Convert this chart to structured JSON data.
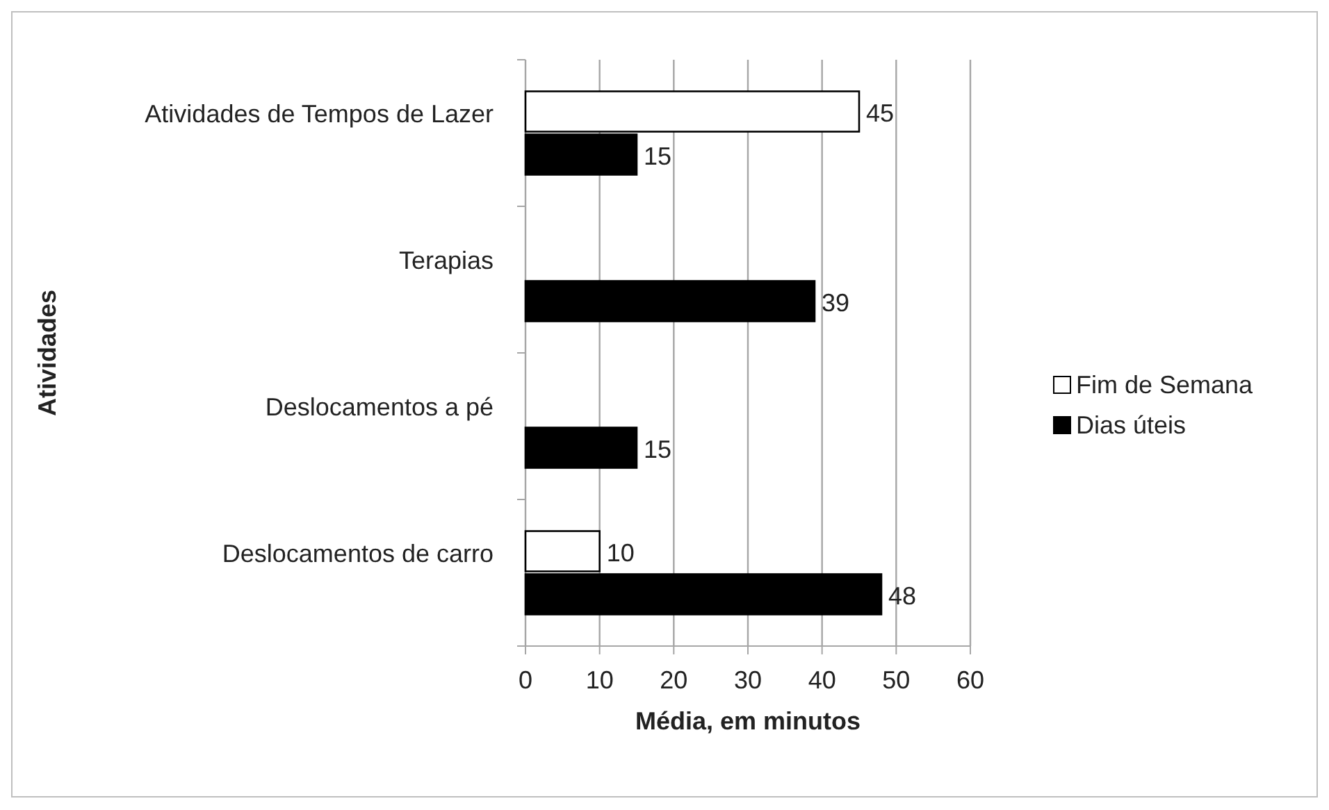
{
  "chart_data": {
    "type": "bar",
    "orientation": "horizontal",
    "xlabel": "Média, em minutos",
    "ylabel": "Atividades",
    "categories": [
      "Atividades de Tempos de Lazer",
      "Terapias",
      "Deslocamentos a pé",
      "Deslocamentos de carro"
    ],
    "series": [
      {
        "name": "Fim de Semana",
        "color": "#ffffff",
        "values": [
          45,
          null,
          null,
          10
        ]
      },
      {
        "name": "Dias úteis",
        "color": "#000000",
        "values": [
          15,
          39,
          15,
          48
        ]
      }
    ],
    "xlim": [
      0,
      60
    ],
    "xticks": [
      0,
      10,
      20,
      30,
      40,
      50,
      60
    ],
    "grid": "x",
    "legend": "right",
    "data_labels": true
  }
}
